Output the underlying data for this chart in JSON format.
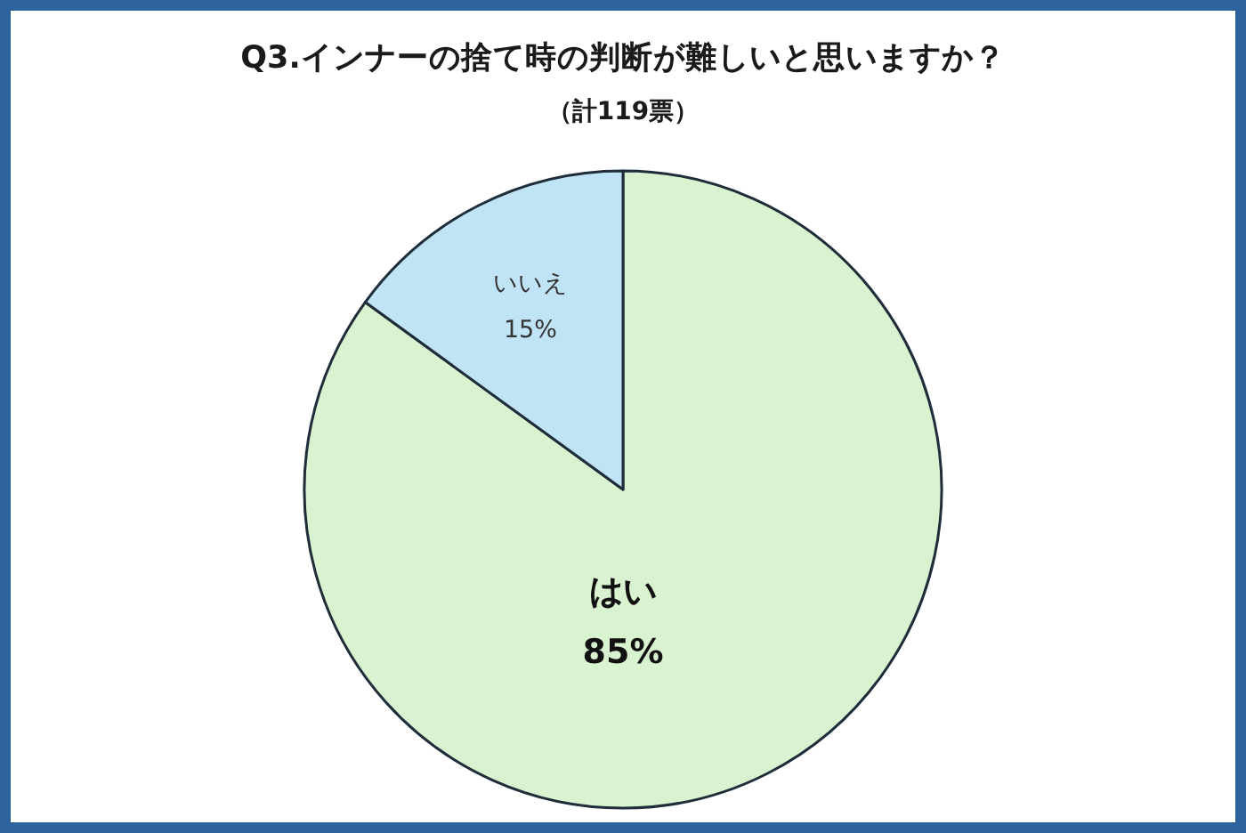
{
  "chart_data": {
    "type": "pie",
    "title": "Q3.インナーの捨て時の判断が難しいと思いますか？",
    "subtitle": "（計119票）",
    "categories": [
      "はい",
      "いいえ"
    ],
    "values": [
      85,
      15
    ],
    "colors": [
      "#d9f2d0",
      "#c0e4f5"
    ],
    "value_labels": [
      "85%",
      "15%"
    ]
  }
}
